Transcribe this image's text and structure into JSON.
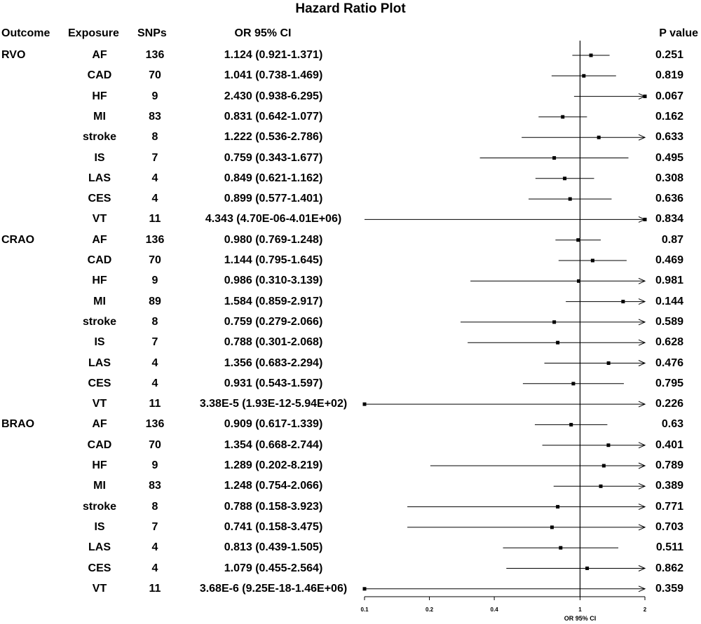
{
  "title": "Hazard Ratio Plot",
  "headers": {
    "outcome": "Outcome",
    "exposure": "Exposure",
    "snps": "SNPs",
    "or": "OR 95% CI",
    "p": "P value"
  },
  "chart_data": {
    "type": "forest",
    "title": "Hazard Ratio Plot",
    "xlabel": "OR 95% CI",
    "x_ticks": [
      0.1,
      0.2,
      0.4,
      1,
      2
    ],
    "x_tick_labels": [
      "0.1",
      "0.2",
      "0.4",
      "1",
      "2"
    ],
    "xlim": [
      0.1,
      2
    ],
    "reference_line": 1,
    "rows": [
      {
        "outcome": "RVO",
        "exposure": "AF",
        "snps": "136",
        "or_text": "1.124 (0.921-1.371)",
        "p": "0.251",
        "or": 1.124,
        "lo": 0.921,
        "hi": 1.371
      },
      {
        "outcome": "",
        "exposure": "CAD",
        "snps": "70",
        "or_text": "1.041 (0.738-1.469)",
        "p": "0.819",
        "or": 1.041,
        "lo": 0.738,
        "hi": 1.469
      },
      {
        "outcome": "",
        "exposure": "HF",
        "snps": "9",
        "or_text": "2.430 (0.938-6.295)",
        "p": "0.067",
        "or": 2.43,
        "lo": 0.938,
        "hi": 6.295
      },
      {
        "outcome": "",
        "exposure": "MI",
        "snps": "83",
        "or_text": "0.831 (0.642-1.077)",
        "p": "0.162",
        "or": 0.831,
        "lo": 0.642,
        "hi": 1.077
      },
      {
        "outcome": "",
        "exposure": "stroke",
        "snps": "8",
        "or_text": "1.222 (0.536-2.786)",
        "p": "0.633",
        "or": 1.222,
        "lo": 0.536,
        "hi": 2.786
      },
      {
        "outcome": "",
        "exposure": "IS",
        "snps": "7",
        "or_text": "0.759 (0.343-1.677)",
        "p": "0.495",
        "or": 0.759,
        "lo": 0.343,
        "hi": 1.677
      },
      {
        "outcome": "",
        "exposure": "LAS",
        "snps": "4",
        "or_text": "0.849 (0.621-1.162)",
        "p": "0.308",
        "or": 0.849,
        "lo": 0.621,
        "hi": 1.162
      },
      {
        "outcome": "",
        "exposure": "CES",
        "snps": "4",
        "or_text": "0.899 (0.577-1.401)",
        "p": "0.636",
        "or": 0.899,
        "lo": 0.577,
        "hi": 1.401
      },
      {
        "outcome": "",
        "exposure": "VT",
        "snps": "11",
        "or_text": "4.343 (4.70E-06-4.01E+06)",
        "p": "0.834",
        "or": 4.343,
        "lo": 4.7e-06,
        "hi": 4010000
      },
      {
        "outcome": "CRAO",
        "exposure": "AF",
        "snps": "136",
        "or_text": "0.980 (0.769-1.248)",
        "p": "0.87",
        "or": 0.98,
        "lo": 0.769,
        "hi": 1.248
      },
      {
        "outcome": "",
        "exposure": "CAD",
        "snps": "70",
        "or_text": "1.144 (0.795-1.645)",
        "p": "0.469",
        "or": 1.144,
        "lo": 0.795,
        "hi": 1.645
      },
      {
        "outcome": "",
        "exposure": "HF",
        "snps": "9",
        "or_text": "0.986 (0.310-3.139)",
        "p": "0.981",
        "or": 0.986,
        "lo": 0.31,
        "hi": 3.139
      },
      {
        "outcome": "",
        "exposure": "MI",
        "snps": "89",
        "or_text": "1.584 (0.859-2.917)",
        "p": "0.144",
        "or": 1.584,
        "lo": 0.859,
        "hi": 2.917
      },
      {
        "outcome": "",
        "exposure": "stroke",
        "snps": "8",
        "or_text": "0.759 (0.279-2.066)",
        "p": "0.589",
        "or": 0.759,
        "lo": 0.279,
        "hi": 2.066
      },
      {
        "outcome": "",
        "exposure": "IS",
        "snps": "7",
        "or_text": "0.788 (0.301-2.068)",
        "p": "0.628",
        "or": 0.788,
        "lo": 0.301,
        "hi": 2.068
      },
      {
        "outcome": "",
        "exposure": "LAS",
        "snps": "4",
        "or_text": "1.356 (0.683-2.294)",
        "p": "0.476",
        "or": 1.356,
        "lo": 0.683,
        "hi": 2.294
      },
      {
        "outcome": "",
        "exposure": "CES",
        "snps": "4",
        "or_text": "0.931 (0.543-1.597)",
        "p": "0.795",
        "or": 0.931,
        "lo": 0.543,
        "hi": 1.597
      },
      {
        "outcome": "",
        "exposure": "VT",
        "snps": "11",
        "or_text": "3.38E-5 (1.93E-12-5.94E+02)",
        "p": "0.226",
        "or": 3.38e-05,
        "lo": 1.93e-12,
        "hi": 594
      },
      {
        "outcome": "BRAO",
        "exposure": "AF",
        "snps": "136",
        "or_text": "0.909 (0.617-1.339)",
        "p": "0.63",
        "or": 0.909,
        "lo": 0.617,
        "hi": 1.339
      },
      {
        "outcome": "",
        "exposure": "CAD",
        "snps": "70",
        "or_text": "1.354 (0.668-2.744)",
        "p": "0.401",
        "or": 1.354,
        "lo": 0.668,
        "hi": 2.744
      },
      {
        "outcome": "",
        "exposure": "HF",
        "snps": "9",
        "or_text": "1.289 (0.202-8.219)",
        "p": "0.789",
        "or": 1.289,
        "lo": 0.202,
        "hi": 8.219
      },
      {
        "outcome": "",
        "exposure": "MI",
        "snps": "83",
        "or_text": "1.248 (0.754-2.066)",
        "p": "0.389",
        "or": 1.248,
        "lo": 0.754,
        "hi": 2.066
      },
      {
        "outcome": "",
        "exposure": "stroke",
        "snps": "8",
        "or_text": "0.788 (0.158-3.923)",
        "p": "0.771",
        "or": 0.788,
        "lo": 0.158,
        "hi": 3.923
      },
      {
        "outcome": "",
        "exposure": "IS",
        "snps": "7",
        "or_text": "0.741 (0.158-3.475)",
        "p": "0.703",
        "or": 0.741,
        "lo": 0.158,
        "hi": 3.475
      },
      {
        "outcome": "",
        "exposure": "LAS",
        "snps": "4",
        "or_text": "0.813 (0.439-1.505)",
        "p": "0.511",
        "or": 0.813,
        "lo": 0.439,
        "hi": 1.505
      },
      {
        "outcome": "",
        "exposure": "CES",
        "snps": "4",
        "or_text": "1.079 (0.455-2.564)",
        "p": "0.862",
        "or": 1.079,
        "lo": 0.455,
        "hi": 2.564
      },
      {
        "outcome": "",
        "exposure": "VT",
        "snps": "11",
        "or_text": "3.68E-6 (9.25E-18-1.46E+06)",
        "p": "0.359",
        "or": 3.68e-06,
        "lo": 9.25e-18,
        "hi": 1460000
      }
    ]
  }
}
